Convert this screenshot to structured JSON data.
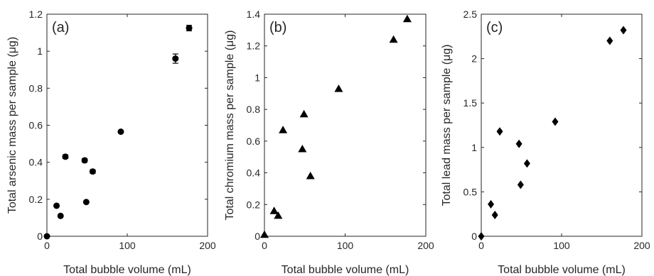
{
  "chart_data": [
    {
      "type": "scatter",
      "panel_label": "(a)",
      "xlabel": "Total bubble volume (mL)",
      "ylabel": "Total arsenic mass per sample (μg)",
      "xlim": [
        0,
        200
      ],
      "ylim": [
        0,
        1.2
      ],
      "xticks": [
        "0",
        "100",
        "200"
      ],
      "yticks": [
        "0",
        "0.2",
        "0.4",
        "0.6",
        "0.8",
        "1",
        "1.2"
      ],
      "marker": "circle",
      "grid": false,
      "points": [
        {
          "x": 0,
          "y": 0
        },
        {
          "x": 12,
          "y": 0.165
        },
        {
          "x": 17,
          "y": 0.11
        },
        {
          "x": 23,
          "y": 0.43,
          "err": 0.01
        },
        {
          "x": 47,
          "y": 0.41,
          "err": 0.01
        },
        {
          "x": 49,
          "y": 0.185
        },
        {
          "x": 57,
          "y": 0.35,
          "err": 0.01
        },
        {
          "x": 92,
          "y": 0.565
        },
        {
          "x": 160,
          "y": 0.96,
          "err": 0.025
        },
        {
          "x": 177,
          "y": 1.125,
          "err": 0.015
        }
      ]
    },
    {
      "type": "scatter",
      "panel_label": "(b)",
      "xlabel": "Total bubble volume (mL)",
      "ylabel": "Total chromium mass per sample (μg)",
      "xlim": [
        0,
        200
      ],
      "ylim": [
        0,
        1.4
      ],
      "xticks": [
        "0",
        "100",
        "200"
      ],
      "yticks": [
        "0",
        "0.2",
        "0.4",
        "0.6",
        "0.8",
        "1",
        "1.2",
        "1.4"
      ],
      "marker": "triangle",
      "grid": false,
      "points": [
        {
          "x": 0,
          "y": 0.01
        },
        {
          "x": 12,
          "y": 0.16
        },
        {
          "x": 17,
          "y": 0.13
        },
        {
          "x": 23,
          "y": 0.67
        },
        {
          "x": 47,
          "y": 0.55
        },
        {
          "x": 49,
          "y": 0.77
        },
        {
          "x": 57,
          "y": 0.38
        },
        {
          "x": 92,
          "y": 0.93
        },
        {
          "x": 160,
          "y": 1.24
        },
        {
          "x": 177,
          "y": 1.37
        }
      ]
    },
    {
      "type": "scatter",
      "panel_label": "(c)",
      "xlabel": "Total bubble volume (mL)",
      "ylabel": "Total lead mass per sample (μg)",
      "xlim": [
        0,
        200
      ],
      "ylim": [
        0,
        2.5
      ],
      "xticks": [
        "0",
        "100",
        "200"
      ],
      "yticks": [
        "0",
        "0.5",
        "1",
        "1.5",
        "2",
        "2.5"
      ],
      "marker": "diamond",
      "grid": false,
      "points": [
        {
          "x": 0,
          "y": 0
        },
        {
          "x": 12,
          "y": 0.36
        },
        {
          "x": 17,
          "y": 0.24
        },
        {
          "x": 23,
          "y": 1.18
        },
        {
          "x": 47,
          "y": 1.04
        },
        {
          "x": 49,
          "y": 0.58
        },
        {
          "x": 57,
          "y": 0.82
        },
        {
          "x": 92,
          "y": 1.29
        },
        {
          "x": 160,
          "y": 2.2
        },
        {
          "x": 177,
          "y": 2.32
        }
      ]
    }
  ]
}
